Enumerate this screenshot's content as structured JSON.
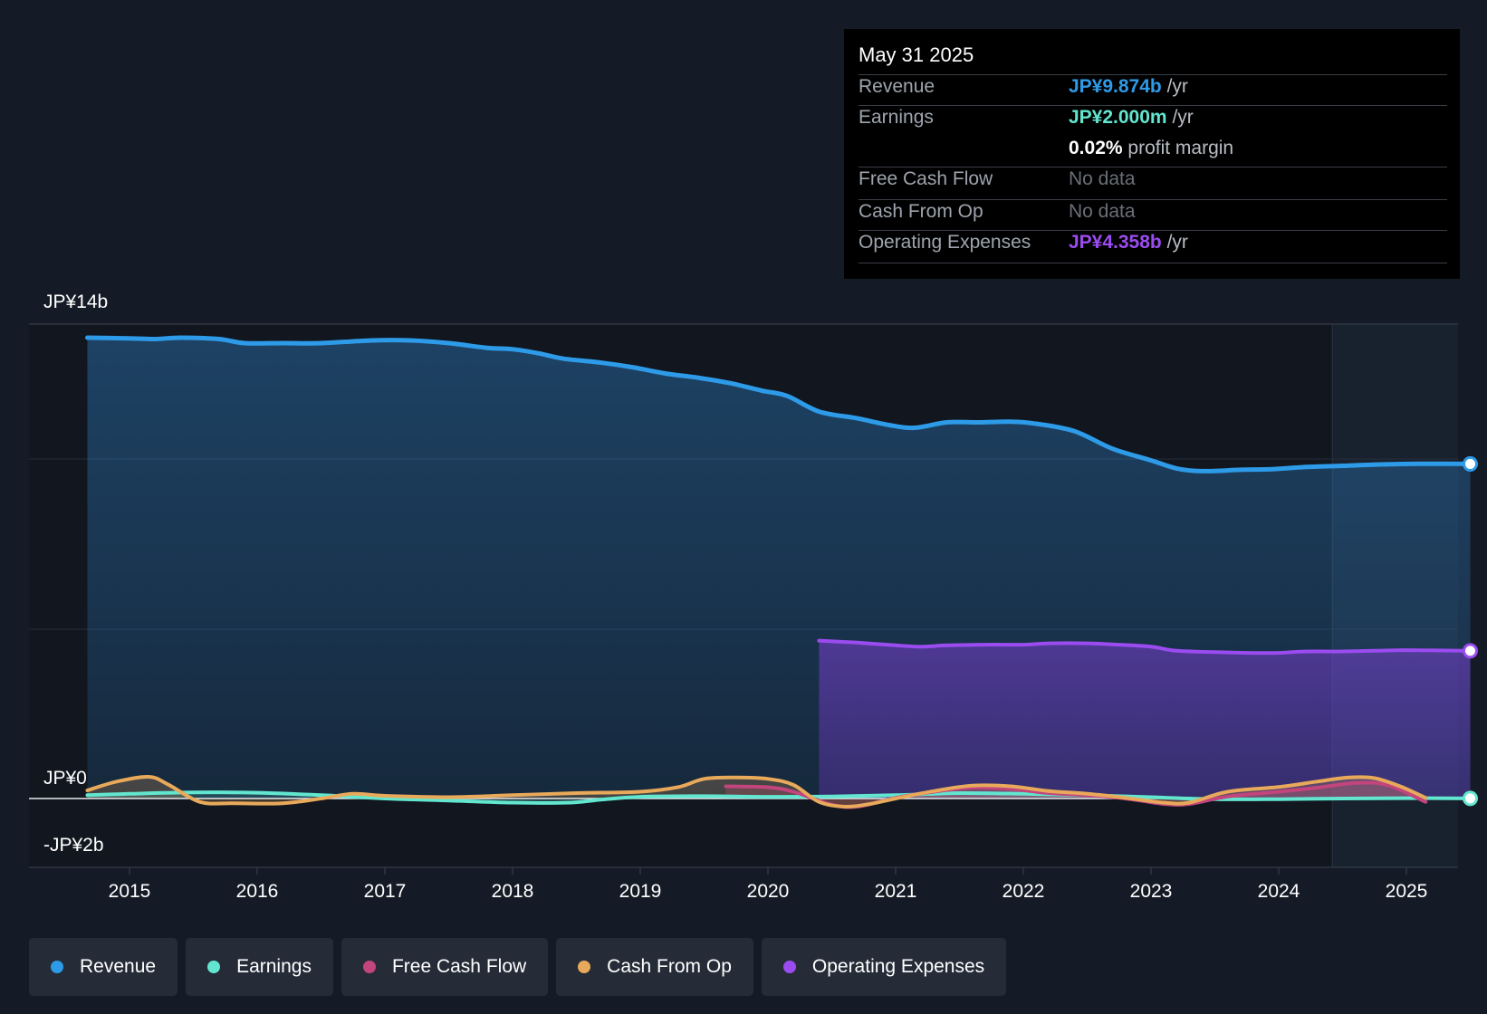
{
  "tooltip": {
    "date": "May 31 2025",
    "revenue_label": "Revenue",
    "revenue_value": "JP¥9.874b",
    "revenue_unit": "/yr",
    "earnings_label": "Earnings",
    "earnings_value": "JP¥2.000m",
    "earnings_unit": "/yr",
    "margin_value": "0.02%",
    "margin_label": "profit margin",
    "fcf_label": "Free Cash Flow",
    "fcf_value": "No data",
    "cfo_label": "Cash From Op",
    "cfo_value": "No data",
    "opex_label": "Operating Expenses",
    "opex_value": "JP¥4.358b",
    "opex_unit": "/yr"
  },
  "legend": [
    {
      "label": "Revenue",
      "color": "#2e9be8"
    },
    {
      "label": "Earnings",
      "color": "#62e6cf"
    },
    {
      "label": "Free Cash Flow",
      "color": "#c2457c"
    },
    {
      "label": "Cash From Op",
      "color": "#e8a95b"
    },
    {
      "label": "Operating Expenses",
      "color": "#9b4cf0"
    }
  ],
  "chart_data": {
    "type": "area",
    "title": "",
    "y_unit": "JP¥ billions",
    "ylim": [
      -2,
      14
    ],
    "y_tick_labels": [
      {
        "value": 14,
        "label": "JP¥14b"
      },
      {
        "value": 0,
        "label": "JP¥0"
      },
      {
        "value": -2,
        "label": "-JP¥2b"
      }
    ],
    "x_tick_labels": [
      "2015",
      "2016",
      "2017",
      "2018",
      "2019",
      "2020",
      "2021",
      "2022",
      "2023",
      "2024",
      "2025"
    ],
    "x_ticks": [
      2015,
      2016,
      2017,
      2018,
      2019,
      2020,
      2021,
      2022,
      2023,
      2024,
      2025
    ],
    "xlim": [
      2014.3,
      2025.5
    ],
    "highlight_from": 2024.42,
    "series": [
      {
        "name": "Revenue",
        "color": "#2e9be8",
        "x": [
          2014.67,
          2015.0,
          2015.2,
          2015.4,
          2015.7,
          2015.9,
          2016.2,
          2016.5,
          2016.9,
          2017.2,
          2017.5,
          2017.8,
          2018.0,
          2018.2,
          2018.4,
          2018.7,
          2018.95,
          2019.2,
          2019.45,
          2019.7,
          2019.95,
          2020.15,
          2020.4,
          2020.7,
          2020.95,
          2021.15,
          2021.4,
          2021.65,
          2021.9,
          2022.1,
          2022.4,
          2022.7,
          2023.0,
          2023.2,
          2023.4,
          2023.7,
          2023.95,
          2024.2,
          2024.5,
          2024.8,
          2025.1,
          2025.5
        ],
        "values": [
          13.6,
          13.58,
          13.56,
          13.6,
          13.56,
          13.44,
          13.44,
          13.44,
          13.52,
          13.52,
          13.44,
          13.3,
          13.26,
          13.14,
          12.98,
          12.86,
          12.72,
          12.54,
          12.42,
          12.26,
          12.04,
          11.88,
          11.42,
          11.22,
          11.02,
          10.94,
          11.1,
          11.1,
          11.12,
          11.06,
          10.84,
          10.32,
          9.98,
          9.74,
          9.66,
          9.7,
          9.72,
          9.78,
          9.82,
          9.86,
          9.88,
          9.874
        ]
      },
      {
        "name": "Earnings",
        "color": "#62e6cf",
        "x": [
          2014.67,
          2015.0,
          2015.5,
          2016.0,
          2016.5,
          2017.0,
          2017.5,
          2018.0,
          2018.45,
          2018.7,
          2019.0,
          2019.5,
          2020.0,
          2020.5,
          2021.0,
          2021.5,
          2022.0,
          2022.5,
          2023.0,
          2023.5,
          2024.0,
          2024.5,
          2025.0,
          2025.5
        ],
        "values": [
          0.1,
          0.14,
          0.18,
          0.17,
          0.1,
          0.0,
          -0.06,
          -0.12,
          -0.12,
          -0.03,
          0.05,
          0.07,
          0.05,
          0.06,
          0.1,
          0.16,
          0.14,
          0.1,
          0.04,
          -0.02,
          -0.02,
          0.0,
          0.01,
          0.002
        ]
      },
      {
        "name": "Free Cash Flow",
        "color": "#c2457c",
        "x": [
          2019.67,
          2020.0,
          2020.2,
          2020.5,
          2020.7,
          2021.0,
          2021.3,
          2021.6,
          2021.9,
          2022.2,
          2022.5,
          2022.8,
          2023.1,
          2023.3,
          2023.6,
          2024.0,
          2024.3,
          2024.6,
          2024.85,
          2025.15
        ],
        "values": [
          0.36,
          0.33,
          0.2,
          -0.18,
          -0.24,
          0.02,
          0.2,
          0.32,
          0.28,
          0.16,
          0.1,
          0.0,
          -0.16,
          -0.16,
          0.06,
          0.2,
          0.32,
          0.46,
          0.4,
          -0.1
        ]
      },
      {
        "name": "Cash From Op",
        "color": "#e8a95b",
        "x": [
          2014.67,
          2014.9,
          2015.15,
          2015.3,
          2015.55,
          2015.8,
          2016.2,
          2016.5,
          2016.75,
          2017.0,
          2017.5,
          2018.0,
          2018.5,
          2019.0,
          2019.3,
          2019.5,
          2019.75,
          2020.0,
          2020.2,
          2020.4,
          2020.6,
          2020.8,
          2021.0,
          2021.3,
          2021.6,
          2021.9,
          2022.2,
          2022.5,
          2022.8,
          2023.1,
          2023.3,
          2023.6,
          2024.0,
          2024.3,
          2024.55,
          2024.75,
          2024.95,
          2025.15
        ],
        "values": [
          0.24,
          0.5,
          0.64,
          0.42,
          -0.1,
          -0.14,
          -0.14,
          0.0,
          0.14,
          0.08,
          0.04,
          0.1,
          0.16,
          0.2,
          0.34,
          0.58,
          0.62,
          0.58,
          0.4,
          -0.1,
          -0.24,
          -0.16,
          0.0,
          0.22,
          0.38,
          0.36,
          0.22,
          0.14,
          0.02,
          -0.12,
          -0.12,
          0.2,
          0.34,
          0.5,
          0.62,
          0.6,
          0.36,
          0.02
        ]
      },
      {
        "name": "Operating Expenses",
        "color": "#9b4cf0",
        "x": [
          2020.4,
          2020.7,
          2021.0,
          2021.2,
          2021.4,
          2021.7,
          2022.0,
          2022.2,
          2022.5,
          2022.75,
          2023.0,
          2023.2,
          2023.5,
          2023.75,
          2024.0,
          2024.2,
          2024.45,
          2024.75,
          2025.0,
          2025.5
        ],
        "values": [
          4.66,
          4.6,
          4.52,
          4.48,
          4.52,
          4.54,
          4.54,
          4.58,
          4.58,
          4.54,
          4.48,
          4.36,
          4.32,
          4.3,
          4.3,
          4.34,
          4.34,
          4.36,
          4.38,
          4.358
        ]
      }
    ]
  }
}
